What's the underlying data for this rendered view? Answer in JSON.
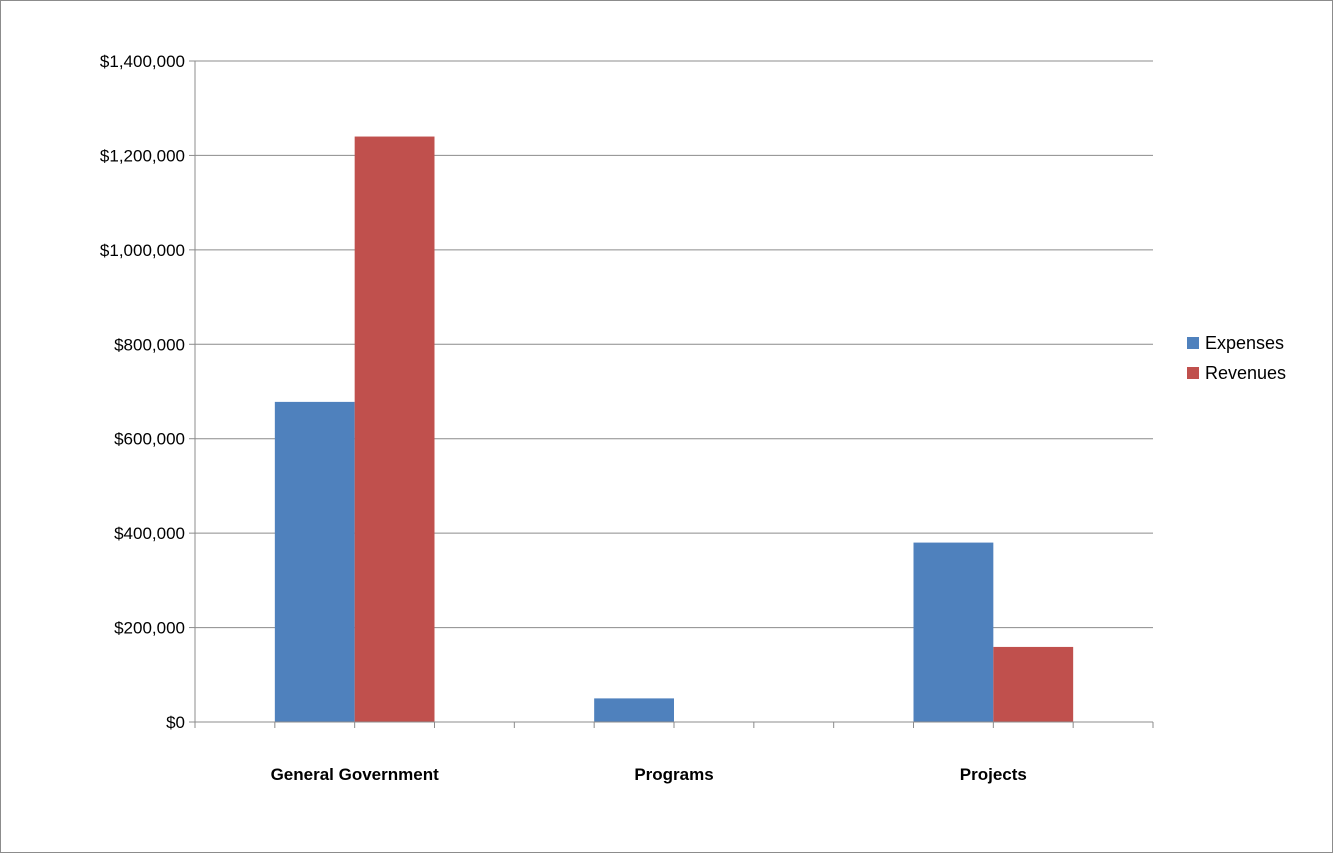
{
  "chart_data": {
    "type": "bar",
    "categories": [
      "General Government",
      "Programs",
      "Projects"
    ],
    "series": [
      {
        "name": "Expenses",
        "color": "#4f81bd",
        "values": [
          678000,
          50000,
          380000
        ]
      },
      {
        "name": "Revenues",
        "color": "#c0504d",
        "values": [
          1240000,
          0,
          159000
        ]
      }
    ],
    "ylim": [
      0,
      1400000
    ],
    "yticks": [
      0,
      200000,
      400000,
      600000,
      800000,
      1000000,
      1200000,
      1400000
    ],
    "ytick_labels": [
      "$0",
      "$200,000",
      "$400,000",
      "$600,000",
      "$800,000",
      "$1,000,000",
      "$1,200,000",
      "$1,400,000"
    ],
    "grid": true,
    "legend_position": "right",
    "title": "",
    "xlabel": "",
    "ylabel": ""
  }
}
